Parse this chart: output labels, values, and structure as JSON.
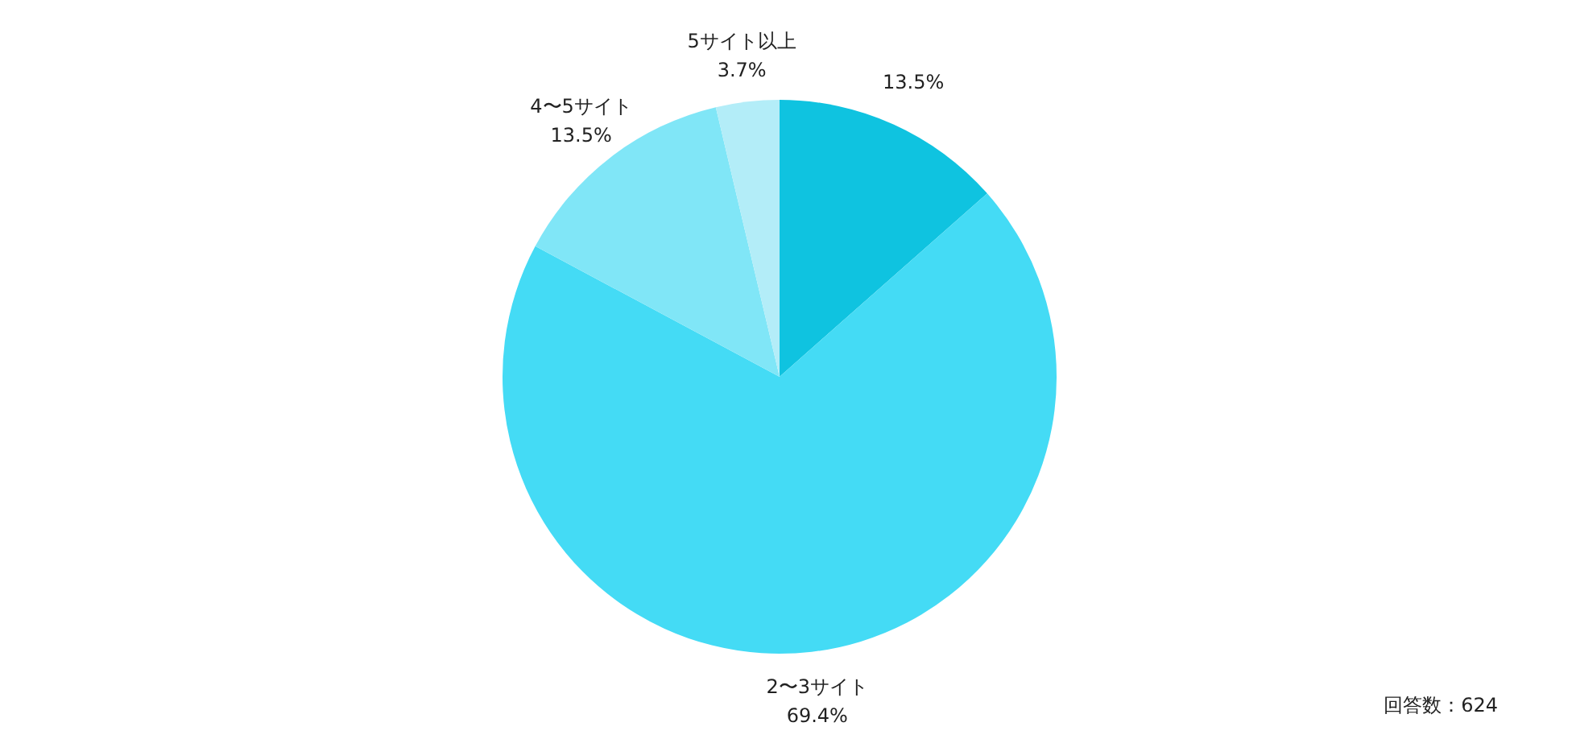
{
  "chart_data": {
    "type": "pie",
    "categories": [
      null,
      "2〜3サイト",
      "4〜5サイト",
      "5サイト以上"
    ],
    "values": [
      13.5,
      69.4,
      13.5,
      3.7
    ],
    "colors": [
      "#0fc3e0",
      "#44dbf5",
      "#80e6f7",
      "#b3edf8"
    ],
    "value_labels": [
      "13.5%",
      "69.4%",
      "13.5%",
      "3.7%"
    ],
    "annotations": [
      "回答数：624"
    ]
  }
}
